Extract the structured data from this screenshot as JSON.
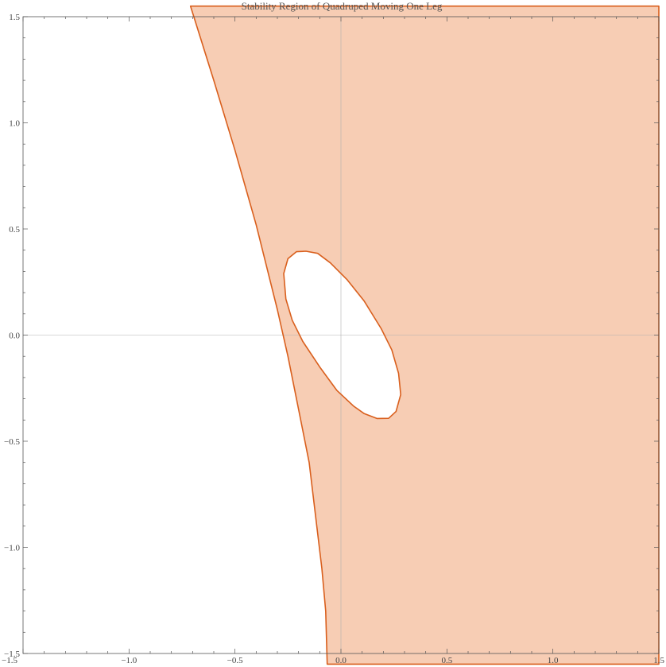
{
  "chart_data": {
    "type": "area",
    "title": "Stability Region of Quadruped Moving One Leg",
    "xlabel": "",
    "ylabel": "",
    "xlim": [
      -1.5,
      1.5
    ],
    "ylim": [
      -1.5,
      1.5
    ],
    "x_ticks": [
      {
        "value": -1.5,
        "label": "−1.5"
      },
      {
        "value": -1.0,
        "label": "−1.0"
      },
      {
        "value": -0.5,
        "label": "−0.5"
      },
      {
        "value": 0.0,
        "label": "0.0"
      },
      {
        "value": 0.5,
        "label": "0.5"
      },
      {
        "value": 1.0,
        "label": "1.0"
      },
      {
        "value": 1.5,
        "label": "1.5"
      }
    ],
    "y_ticks": [
      {
        "value": 1.5,
        "label": "1.5"
      },
      {
        "value": 1.0,
        "label": "1.0"
      },
      {
        "value": 0.5,
        "label": "0.5"
      },
      {
        "value": 0.0,
        "label": "0.0"
      },
      {
        "value": -0.5,
        "label": "−0.5"
      },
      {
        "value": -1.0,
        "label": "−1.0"
      },
      {
        "value": -1.5,
        "label": "−1.5"
      }
    ],
    "grid": false,
    "axes_origin_lines": true,
    "fill_color": "#F7CDB4",
    "edge_color": "#D95F1D",
    "outer_boundary": [
      [
        -0.71,
        1.55
      ],
      [
        -0.6,
        1.2
      ],
      [
        -0.5,
        0.87
      ],
      [
        -0.4,
        0.52
      ],
      [
        -0.3,
        0.12
      ],
      [
        -0.25,
        -0.1
      ],
      [
        -0.2,
        -0.35
      ],
      [
        -0.15,
        -0.6
      ],
      [
        -0.12,
        -0.85
      ],
      [
        -0.09,
        -1.1
      ],
      [
        -0.072,
        -1.3
      ],
      [
        -0.065,
        -1.55
      ],
      [
        1.5,
        -1.55
      ],
      [
        1.5,
        1.55
      ]
    ],
    "hole_boundary": [
      [
        -0.165,
        0.395
      ],
      [
        -0.21,
        0.393
      ],
      [
        -0.25,
        0.36
      ],
      [
        -0.27,
        0.29
      ],
      [
        -0.26,
        0.17
      ],
      [
        -0.23,
        0.07
      ],
      [
        -0.18,
        -0.03
      ],
      [
        -0.1,
        -0.15
      ],
      [
        -0.02,
        -0.26
      ],
      [
        0.06,
        -0.335
      ],
      [
        0.11,
        -0.37
      ],
      [
        0.17,
        -0.393
      ],
      [
        0.225,
        -0.392
      ],
      [
        0.26,
        -0.36
      ],
      [
        0.282,
        -0.28
      ],
      [
        0.272,
        -0.18
      ],
      [
        0.24,
        -0.07
      ],
      [
        0.19,
        0.03
      ],
      [
        0.11,
        0.16
      ],
      [
        0.03,
        0.26
      ],
      [
        -0.05,
        0.34
      ],
      [
        -0.11,
        0.385
      ]
    ]
  }
}
